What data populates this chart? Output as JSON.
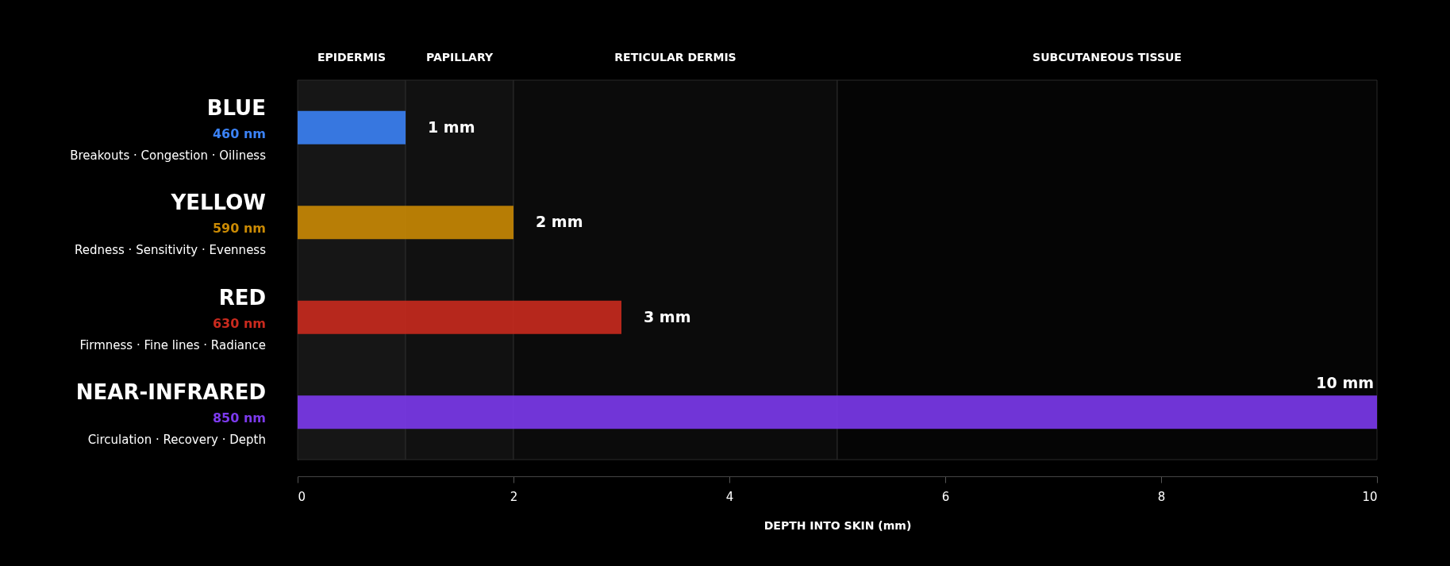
{
  "chart_data": {
    "type": "bar",
    "orientation": "horizontal",
    "grid": false,
    "categories": [
      "BLUE",
      "YELLOW",
      "RED",
      "NEAR-INFRARED"
    ],
    "values": [
      1,
      2,
      3,
      10
    ],
    "colors": [
      "#3b82f6",
      "#ca8a04",
      "#c92a1e",
      "#7c3aed"
    ],
    "value_labels": [
      "1 mm",
      "2 mm",
      "3 mm",
      "10 mm"
    ],
    "xlim": [
      0,
      10
    ],
    "xticks": [
      0,
      2,
      4,
      6,
      8,
      10
    ],
    "xlabel": "DEPTH INTO SKIN (mm)",
    "bands": [
      {
        "axis": "x",
        "from": 0,
        "to": 1,
        "label": "EPIDERMIS",
        "color": "#161616"
      },
      {
        "axis": "x",
        "from": 1,
        "to": 2,
        "label": "PAPILLARY",
        "color": "#111111"
      },
      {
        "axis": "x",
        "from": 2,
        "to": 5,
        "label": "RETICULAR DERMIS",
        "color": "#0b0b0b"
      },
      {
        "axis": "x",
        "from": 5,
        "to": 10,
        "label": "SUBCUTANEOUS TISSUE",
        "color": "#050505"
      }
    ],
    "annotations": [
      "460 nm",
      "Breakouts · Congestion · Oiliness",
      "590 nm",
      "Redness · Sensitivity · Evenness",
      "630 nm",
      "Firmness · Fine lines · Radiance",
      "850 nm",
      "Circulation · Recovery · Depth"
    ]
  }
}
